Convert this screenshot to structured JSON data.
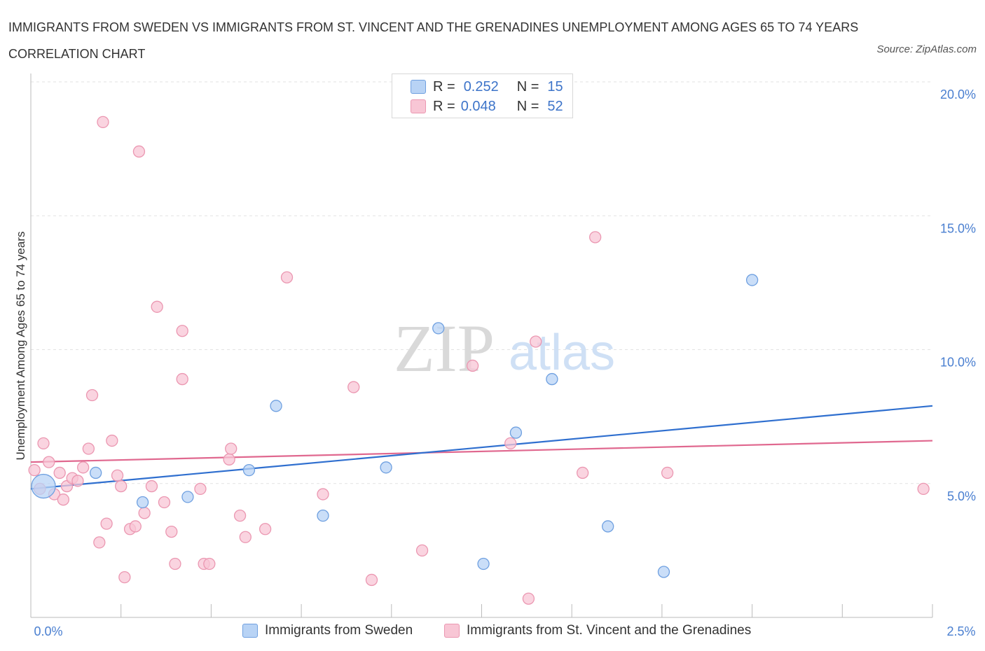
{
  "title": "IMMIGRANTS FROM SWEDEN VS IMMIGRANTS FROM ST. VINCENT AND THE GRENADINES UNEMPLOYMENT AMONG AGES 65 TO 74 YEARS CORRELATION CHART",
  "source": "Source: ZipAtlas.com",
  "watermark": {
    "zip": "ZIP",
    "atlas": "atlas"
  },
  "legend": {
    "r_label": "R =",
    "n_label": "N =",
    "rows": [
      {
        "r": "0.252",
        "n": "15"
      },
      {
        "r": "0.048",
        "n": "52"
      }
    ]
  },
  "colors": {
    "sweden_fill": "#b8d3f5",
    "sweden_stroke": "#6fa0e0",
    "sweden_line": "#2f6fcf",
    "svg_fill": "#f8c6d5",
    "svg_stroke": "#eb97b1",
    "svg_line": "#e0688f",
    "grid": "#e2e2e2",
    "axis": "#bbbbbb"
  },
  "chart_data": {
    "type": "scatter",
    "title": "IMMIGRANTS FROM SWEDEN VS IMMIGRANTS FROM ST. VINCENT AND THE GRENADINES UNEMPLOYMENT AMONG AGES 65 TO 74 YEARS CORRELATION CHART",
    "xlabel": "",
    "ylabel": "Unemployment Among Ages 65 to 74 years",
    "xlim": [
      0,
      2.5
    ],
    "ylim": [
      0,
      20
    ],
    "x_tick_labels": [
      "0.0%",
      "2.5%"
    ],
    "y_ticks": [
      5,
      10,
      15,
      20
    ],
    "y_tick_labels": [
      "5.0%",
      "10.0%",
      "15.0%",
      "20.0%"
    ],
    "series": [
      {
        "name": "Immigrants from Sweden",
        "r": 0.252,
        "n": 15,
        "trend": {
          "x": [
            0,
            2.5
          ],
          "y": [
            4.8,
            7.9
          ]
        },
        "points": [
          {
            "x": 0.035,
            "y": 4.9,
            "big": true
          },
          {
            "x": 0.18,
            "y": 5.4
          },
          {
            "x": 0.31,
            "y": 4.3
          },
          {
            "x": 0.435,
            "y": 4.5
          },
          {
            "x": 0.605,
            "y": 5.5
          },
          {
            "x": 0.68,
            "y": 7.9
          },
          {
            "x": 0.81,
            "y": 3.8
          },
          {
            "x": 0.985,
            "y": 5.6
          },
          {
            "x": 1.13,
            "y": 10.8
          },
          {
            "x": 1.255,
            "y": 2.0
          },
          {
            "x": 1.345,
            "y": 6.9
          },
          {
            "x": 1.445,
            "y": 8.9
          },
          {
            "x": 1.6,
            "y": 3.4
          },
          {
            "x": 1.755,
            "y": 1.7
          },
          {
            "x": 2.0,
            "y": 12.6
          }
        ]
      },
      {
        "name": "Immigrants from St. Vincent and the Grenadines",
        "r": 0.048,
        "n": 52,
        "trend": {
          "x": [
            0,
            2.5
          ],
          "y": [
            5.8,
            6.6
          ]
        },
        "points": [
          {
            "x": 0.01,
            "y": 5.5
          },
          {
            "x": 0.025,
            "y": 4.8
          },
          {
            "x": 0.035,
            "y": 6.5
          },
          {
            "x": 0.05,
            "y": 5.8
          },
          {
            "x": 0.065,
            "y": 4.6
          },
          {
            "x": 0.08,
            "y": 5.4
          },
          {
            "x": 0.09,
            "y": 4.4
          },
          {
            "x": 0.1,
            "y": 4.9
          },
          {
            "x": 0.115,
            "y": 5.2
          },
          {
            "x": 0.13,
            "y": 5.1
          },
          {
            "x": 0.145,
            "y": 5.6
          },
          {
            "x": 0.16,
            "y": 6.3
          },
          {
            "x": 0.17,
            "y": 8.3
          },
          {
            "x": 0.19,
            "y": 2.8
          },
          {
            "x": 0.2,
            "y": 18.5
          },
          {
            "x": 0.21,
            "y": 3.5
          },
          {
            "x": 0.225,
            "y": 6.6
          },
          {
            "x": 0.24,
            "y": 5.3
          },
          {
            "x": 0.25,
            "y": 4.9
          },
          {
            "x": 0.26,
            "y": 1.5
          },
          {
            "x": 0.275,
            "y": 3.3
          },
          {
            "x": 0.29,
            "y": 3.4
          },
          {
            "x": 0.3,
            "y": 17.4
          },
          {
            "x": 0.315,
            "y": 3.9
          },
          {
            "x": 0.335,
            "y": 4.9
          },
          {
            "x": 0.35,
            "y": 11.6
          },
          {
            "x": 0.37,
            "y": 4.3
          },
          {
            "x": 0.39,
            "y": 3.2
          },
          {
            "x": 0.4,
            "y": 2.0
          },
          {
            "x": 0.42,
            "y": 10.7
          },
          {
            "x": 0.42,
            "y": 8.9
          },
          {
            "x": 0.47,
            "y": 4.8
          },
          {
            "x": 0.48,
            "y": 2.0
          },
          {
            "x": 0.495,
            "y": 2.0
          },
          {
            "x": 0.55,
            "y": 5.9
          },
          {
            "x": 0.555,
            "y": 6.3
          },
          {
            "x": 0.58,
            "y": 3.8
          },
          {
            "x": 0.595,
            "y": 3.0
          },
          {
            "x": 0.65,
            "y": 3.3
          },
          {
            "x": 0.71,
            "y": 12.7
          },
          {
            "x": 0.81,
            "y": 4.6
          },
          {
            "x": 0.895,
            "y": 8.6
          },
          {
            "x": 0.945,
            "y": 1.4
          },
          {
            "x": 1.085,
            "y": 2.5
          },
          {
            "x": 1.225,
            "y": 9.4
          },
          {
            "x": 1.33,
            "y": 6.5
          },
          {
            "x": 1.38,
            "y": 0.7
          },
          {
            "x": 1.4,
            "y": 10.3
          },
          {
            "x": 1.53,
            "y": 5.4
          },
          {
            "x": 1.565,
            "y": 14.2
          },
          {
            "x": 1.765,
            "y": 5.4
          },
          {
            "x": 2.475,
            "y": 4.8
          }
        ]
      }
    ]
  }
}
